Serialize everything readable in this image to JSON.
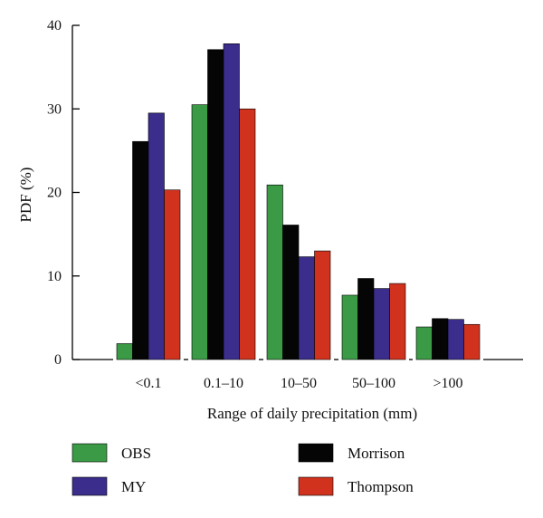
{
  "chart_data": {
    "type": "bar",
    "title": "",
    "xlabel": "Range of daily precipitation (mm)",
    "ylabel": "PDF (%)",
    "ylim": [
      0,
      40
    ],
    "yticks": [
      0,
      10,
      20,
      30,
      40
    ],
    "categories": [
      "<0.1",
      "0.1–10",
      "10–50",
      "50–100",
      ">100"
    ],
    "series": [
      {
        "name": "OBS",
        "color": "#3a9a45",
        "values": [
          1.9,
          30.5,
          20.9,
          7.7,
          3.9
        ]
      },
      {
        "name": "Morrison",
        "color": "#050505",
        "values": [
          26.1,
          37.1,
          16.1,
          9.7,
          4.9
        ]
      },
      {
        "name": "MY",
        "color": "#3a2d8c",
        "values": [
          29.5,
          37.8,
          12.3,
          8.5,
          4.8
        ]
      },
      {
        "name": "Thompson",
        "color": "#d0321e",
        "values": [
          20.3,
          30.0,
          13.0,
          9.1,
          4.2
        ]
      }
    ],
    "grid": false,
    "legend_position": "bottom"
  }
}
